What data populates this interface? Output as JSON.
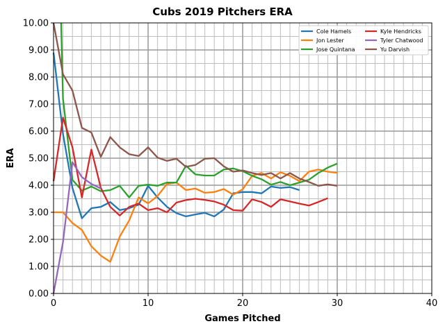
{
  "chart_data": {
    "type": "line",
    "title": "Cubs 2019 Pitchers ERA",
    "xlabel": "Games Pitched",
    "ylabel": "ERA",
    "xlim": [
      0,
      40
    ],
    "ylim": [
      0,
      10
    ],
    "xticks": [
      0,
      10,
      20,
      30,
      40
    ],
    "yticks": [
      0,
      1,
      2,
      3,
      4,
      5,
      6,
      7,
      8,
      9,
      10
    ],
    "xtick_labels": [
      "0",
      "10",
      "20",
      "30",
      "40"
    ],
    "ytick_labels": [
      "0.00",
      "1.00",
      "2.00",
      "3.00",
      "4.00",
      "5.00",
      "6.00",
      "7.00",
      "8.00",
      "9.00",
      "10.00"
    ],
    "grid": true,
    "legend_position": "top-right",
    "series": [
      {
        "name": "Cole Hamels",
        "color": "#1f77b4",
        "x": [
          0,
          1,
          2,
          3,
          4,
          5,
          6,
          7,
          8,
          9,
          10,
          11,
          12,
          13,
          14,
          15,
          16,
          17,
          18,
          19,
          20,
          21,
          22,
          23,
          24,
          25,
          26
        ],
        "y": [
          8.9,
          5.9,
          3.9,
          2.78,
          3.15,
          3.2,
          3.38,
          3.08,
          3.15,
          3.28,
          3.98,
          3.55,
          3.2,
          2.97,
          2.85,
          2.92,
          2.98,
          2.85,
          3.1,
          3.7,
          3.75,
          3.75,
          3.7,
          3.95,
          3.9,
          3.93,
          3.82
        ]
      },
      {
        "name": "Jon Lester",
        "color": "#ff7f0e",
        "x": [
          0,
          1,
          2,
          3,
          4,
          5,
          6,
          7,
          8,
          9,
          10,
          11,
          12,
          13,
          14,
          15,
          16,
          17,
          18,
          19,
          20,
          21,
          22,
          23,
          24,
          25,
          26,
          27,
          28,
          29,
          30
        ],
        "y": [
          3.0,
          3.0,
          2.6,
          2.35,
          1.74,
          1.4,
          1.17,
          2.1,
          2.7,
          3.55,
          3.33,
          3.6,
          4.05,
          4.1,
          3.82,
          3.88,
          3.72,
          3.75,
          3.86,
          3.65,
          3.85,
          4.35,
          4.45,
          4.25,
          4.48,
          4.35,
          4.15,
          4.5,
          4.58,
          4.5,
          4.46
        ]
      },
      {
        "name": "Jose Quintana",
        "color": "#2ca02c",
        "x": [
          0.8,
          1,
          2,
          3,
          4,
          5,
          6,
          7,
          8,
          9,
          10,
          11,
          12,
          13,
          14,
          15,
          16,
          17,
          18,
          19,
          20,
          21,
          22,
          23,
          24,
          25,
          26,
          27,
          28,
          29,
          30
        ],
        "y": [
          10.0,
          7.2,
          4.2,
          3.8,
          3.95,
          3.78,
          3.82,
          3.98,
          3.55,
          3.98,
          4.02,
          3.98,
          4.1,
          4.1,
          4.72,
          4.4,
          4.36,
          4.36,
          4.58,
          4.62,
          4.52,
          4.35,
          4.22,
          4.02,
          4.12,
          4.0,
          4.1,
          4.2,
          4.45,
          4.65,
          4.8
        ]
      },
      {
        "name": "Kyle Hendricks",
        "color": "#d62728",
        "x": [
          0,
          1,
          2,
          3,
          4,
          5,
          6,
          7,
          8,
          9,
          10,
          11,
          12,
          13,
          14,
          15,
          16,
          17,
          18,
          19,
          20,
          21,
          22,
          23,
          24,
          25,
          26,
          27,
          28,
          29
        ],
        "y": [
          4.15,
          6.5,
          5.4,
          3.55,
          5.32,
          3.9,
          3.2,
          2.88,
          3.2,
          3.32,
          3.08,
          3.15,
          3.0,
          3.36,
          3.45,
          3.5,
          3.46,
          3.4,
          3.28,
          3.08,
          3.06,
          3.48,
          3.38,
          3.2,
          3.48,
          3.4,
          3.32,
          3.25,
          3.38,
          3.52
        ]
      },
      {
        "name": "Tyler Chatwood",
        "color": "#9467bd",
        "x": [
          0,
          1,
          2,
          3,
          4,
          5
        ],
        "y": [
          0.0,
          1.9,
          4.85,
          4.3,
          4.05,
          3.88
        ]
      },
      {
        "name": "Yu Darvish",
        "color": "#8c564b",
        "x": [
          0,
          1,
          2,
          3,
          4,
          5,
          6,
          7,
          8,
          9,
          10,
          11,
          12,
          13,
          14,
          15,
          16,
          17,
          18,
          19,
          20,
          21,
          22,
          23,
          24,
          25,
          26,
          27,
          28,
          29,
          30
        ],
        "y": [
          10.0,
          8.1,
          7.5,
          6.12,
          5.95,
          5.05,
          5.78,
          5.4,
          5.15,
          5.08,
          5.4,
          5.02,
          4.9,
          4.98,
          4.68,
          4.75,
          4.98,
          5.0,
          4.7,
          4.5,
          4.55,
          4.45,
          4.38,
          4.45,
          4.25,
          4.45,
          4.25,
          4.12,
          3.98,
          4.03,
          3.98
        ]
      }
    ]
  }
}
